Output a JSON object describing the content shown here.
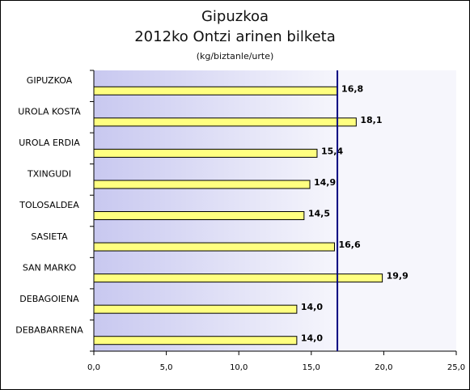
{
  "chart_data": {
    "type": "bar",
    "orientation": "horizontal",
    "title": "Gipuzkoa",
    "subtitle": "2012ko Ontzi arinen bilketa",
    "unit": "(kg/biztanle/urte)",
    "categories": [
      "GIPUZKOA",
      "UROLA KOSTA",
      "UROLA ERDIA",
      "TXINGUDI",
      "TOLOSALDEA",
      "SASIETA",
      "SAN MARKO",
      "DEBAGOIENA",
      "DEBABARRENA"
    ],
    "values": [
      16.8,
      18.1,
      15.4,
      14.9,
      14.5,
      16.6,
      19.9,
      14.0,
      14.0
    ],
    "value_labels": [
      "16,8",
      "18,1",
      "15,4",
      "14,9",
      "14,5",
      "16,6",
      "19,9",
      "14,0",
      "14,0"
    ],
    "xlim": [
      0,
      25
    ],
    "x_ticks": [
      "0,0",
      "5,0",
      "10,0",
      "15,0",
      "20,0",
      "25,0"
    ],
    "reference_line": 16.8,
    "colors": {
      "bar_fill": "#ffff80",
      "bar_stroke": "#000000",
      "band_left": "#c8c8f0",
      "band_right": "#f6f6fc",
      "reference_line": "#000080"
    }
  }
}
